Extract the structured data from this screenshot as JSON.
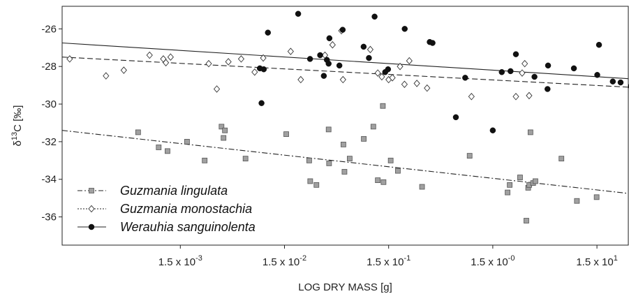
{
  "chart_data": {
    "type": "scatter",
    "title": "",
    "xlabel": "LOG DRY MASS [g]",
    "ylabel": "δ13C [‰]",
    "ylabel_parts": {
      "prefix": "δ",
      "sup": "13",
      "suffix": "C [‰]"
    },
    "x_scale": "log10",
    "xlim": [
      0.00011,
      30
    ],
    "ylim": [
      -37.5,
      -24.8
    ],
    "x_ticks": [
      {
        "value": 0.0015,
        "mantissa": "1.5 x 10",
        "exp": "-3"
      },
      {
        "value": 0.015,
        "mantissa": "1.5 x 10",
        "exp": "-2"
      },
      {
        "value": 0.15,
        "mantissa": "1.5 x 10",
        "exp": "-1"
      },
      {
        "value": 1.5,
        "mantissa": "1.5 x 10",
        "exp": "-0"
      },
      {
        "value": 15,
        "mantissa": "1.5 x 10",
        "exp": "1"
      }
    ],
    "y_ticks": [
      -36,
      -34,
      -32,
      -30,
      -28,
      -26
    ],
    "legend_position": "bottom-left",
    "series": [
      {
        "name": "Guzmania lingulata",
        "marker": "square",
        "line_style": "dashdot",
        "color": "#999999",
        "fit": {
          "x": [
            0.00011,
            30
          ],
          "y": [
            -31.4,
            -34.75
          ]
        },
        "points": [
          [
            0.00059,
            -31.5
          ],
          [
            0.00093,
            -32.3
          ],
          [
            0.00113,
            -32.5
          ],
          [
            0.00174,
            -32.0
          ],
          [
            0.00257,
            -33.0
          ],
          [
            0.00373,
            -31.2
          ],
          [
            0.0039,
            -31.8
          ],
          [
            0.00402,
            -31.4
          ],
          [
            0.00634,
            -32.9
          ],
          [
            0.0156,
            -31.6
          ],
          [
            0.0259,
            -33.0
          ],
          [
            0.0265,
            -34.1
          ],
          [
            0.0304,
            -34.3
          ],
          [
            0.0398,
            -31.35
          ],
          [
            0.0402,
            -33.15
          ],
          [
            0.0552,
            -32.15
          ],
          [
            0.0565,
            -33.6
          ],
          [
            0.0634,
            -32.9
          ],
          [
            0.0866,
            -31.85
          ],
          [
            0.107,
            -31.2
          ],
          [
            0.118,
            -34.05
          ],
          [
            0.132,
            -30.1
          ],
          [
            0.134,
            -34.15
          ],
          [
            0.157,
            -33.0
          ],
          [
            0.184,
            -33.55
          ],
          [
            0.314,
            -34.4
          ],
          [
            0.899,
            -32.75
          ],
          [
            2.08,
            -34.7
          ],
          [
            2.18,
            -34.3
          ],
          [
            2.74,
            -33.9
          ],
          [
            3.15,
            -36.2
          ],
          [
            3.28,
            -34.45
          ],
          [
            3.36,
            -34.3
          ],
          [
            3.45,
            -31.5
          ],
          [
            3.66,
            -34.2
          ],
          [
            3.85,
            -34.1
          ],
          [
            6.84,
            -32.9
          ],
          [
            9.63,
            -35.15
          ],
          [
            14.9,
            -34.95
          ]
        ]
      },
      {
        "name": "Guzmania monostachia",
        "marker": "diamond",
        "line_style": "dotted",
        "color": "#ffffff",
        "fit": {
          "x": [
            0.00011,
            30
          ],
          "y": [
            -27.5,
            -29.1
          ]
        },
        "points": [
          [
            0.00013,
            -27.6
          ],
          [
            0.00029,
            -28.5
          ],
          [
            0.00043,
            -28.2
          ],
          [
            0.00076,
            -27.4
          ],
          [
            0.00103,
            -27.6
          ],
          [
            0.00109,
            -27.8
          ],
          [
            0.00121,
            -27.5
          ],
          [
            0.00281,
            -27.85
          ],
          [
            0.00336,
            -29.2
          ],
          [
            0.00434,
            -27.75
          ],
          [
            0.00576,
            -27.6
          ],
          [
            0.00776,
            -28.3
          ],
          [
            0.00938,
            -27.55
          ],
          [
            0.0172,
            -27.2
          ],
          [
            0.0215,
            -28.7
          ],
          [
            0.0367,
            -27.4
          ],
          [
            0.0434,
            -26.85
          ],
          [
            0.0528,
            -26.1
          ],
          [
            0.0547,
            -28.7
          ],
          [
            0.1,
            -27.1
          ],
          [
            0.118,
            -28.35
          ],
          [
            0.129,
            -28.55
          ],
          [
            0.15,
            -28.7
          ],
          [
            0.163,
            -28.6
          ],
          [
            0.193,
            -28.0
          ],
          [
            0.213,
            -28.95
          ],
          [
            0.237,
            -27.7
          ],
          [
            0.28,
            -28.9
          ],
          [
            0.351,
            -29.15
          ],
          [
            0.936,
            -29.6
          ],
          [
            2.5,
            -29.6
          ],
          [
            2.87,
            -28.35
          ],
          [
            3.04,
            -27.85
          ],
          [
            3.35,
            -29.55
          ]
        ]
      },
      {
        "name": "Werauhia sanguinolenta",
        "marker": "circle",
        "line_style": "solid",
        "color": "#111111",
        "fit": {
          "x": [
            0.00011,
            30
          ],
          "y": [
            -26.75,
            -28.65
          ]
        },
        "points": [
          [
            0.0087,
            -28.1
          ],
          [
            0.00903,
            -29.95
          ],
          [
            0.00949,
            -28.15
          ],
          [
            0.0104,
            -26.2
          ],
          [
            0.0203,
            -25.2
          ],
          [
            0.0264,
            -27.6
          ],
          [
            0.033,
            -27.4
          ],
          [
            0.0358,
            -28.5
          ],
          [
            0.0383,
            -27.65
          ],
          [
            0.0398,
            -27.85
          ],
          [
            0.0405,
            -26.5
          ],
          [
            0.0505,
            -27.95
          ],
          [
            0.0543,
            -26.05
          ],
          [
            0.0863,
            -26.95
          ],
          [
            0.097,
            -27.55
          ],
          [
            0.11,
            -25.35
          ],
          [
            0.139,
            -28.3
          ],
          [
            0.148,
            -28.15
          ],
          [
            0.214,
            -26.0
          ],
          [
            0.372,
            -26.7
          ],
          [
            0.396,
            -26.75
          ],
          [
            0.663,
            -30.7
          ],
          [
            0.815,
            -28.6
          ],
          [
            1.5,
            -31.4
          ],
          [
            1.83,
            -28.3
          ],
          [
            2.22,
            -28.25
          ],
          [
            2.5,
            -27.35
          ],
          [
            3.77,
            -28.55
          ],
          [
            5.03,
            -29.2
          ],
          [
            5.09,
            -27.95
          ],
          [
            9.01,
            -28.1
          ],
          [
            15.1,
            -28.45
          ],
          [
            15.7,
            -26.85
          ],
          [
            21.3,
            -28.8
          ],
          [
            25.3,
            -28.85
          ],
          [
            31.8,
            -29.05
          ],
          [
            33.9,
            -28.2
          ]
        ]
      }
    ]
  }
}
